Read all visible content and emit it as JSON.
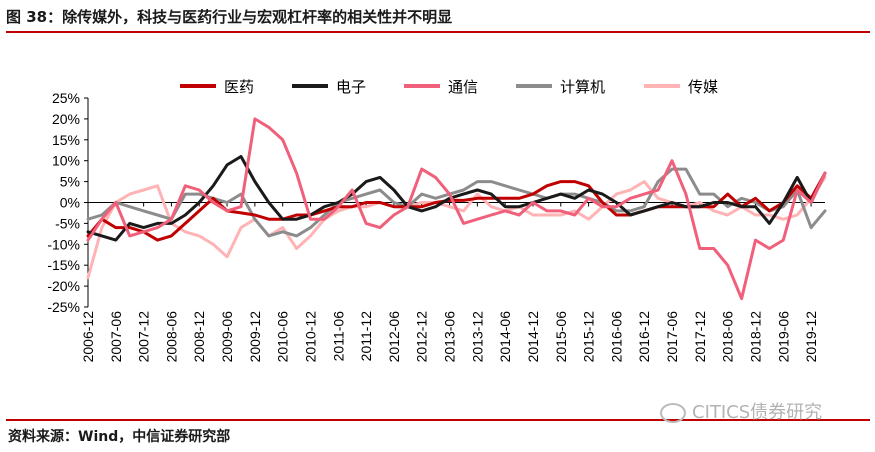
{
  "header": {
    "title": "图 38：除传媒外，科技与医药行业与宏观杠杆率的相关性并不明显"
  },
  "footer": {
    "source": "资料来源：Wind，中信证券研究部"
  },
  "watermark": {
    "text": "CITICS债券研究",
    "icon": "wechat-icon"
  },
  "chart_data": {
    "type": "line",
    "x": [
      "2006-12",
      "2007-03",
      "2007-06",
      "2007-09",
      "2007-12",
      "2008-03",
      "2008-06",
      "2008-09",
      "2008-12",
      "2009-03",
      "2009-06",
      "2009-09",
      "2009-12",
      "2010-03",
      "2010-06",
      "2010-09",
      "2010-12",
      "2011-03",
      "2011-06",
      "2011-09",
      "2011-12",
      "2012-03",
      "2012-06",
      "2012-09",
      "2012-12",
      "2013-03",
      "2013-06",
      "2013-09",
      "2013-12",
      "2014-03",
      "2014-06",
      "2014-09",
      "2014-12",
      "2015-03",
      "2015-06",
      "2015-09",
      "2015-12",
      "2016-03",
      "2016-06",
      "2016-09",
      "2016-12",
      "2017-03",
      "2017-06",
      "2017-09",
      "2017-12",
      "2018-03",
      "2018-06",
      "2018-09",
      "2018-12",
      "2019-03",
      "2019-06",
      "2019-09",
      "2019-12",
      "2020-03"
    ],
    "xtick_labels": [
      "2006-12",
      "2007-06",
      "2007-12",
      "2008-06",
      "2008-12",
      "2009-06",
      "2009-12",
      "2010-06",
      "2010-12",
      "2011-06",
      "2011-12",
      "2012-06",
      "2012-12",
      "2013-06",
      "2013-12",
      "2014-06",
      "2014-12",
      "2015-06",
      "2015-12",
      "2016-06",
      "2016-12",
      "2017-06",
      "2017-12",
      "2018-06",
      "2018-12",
      "2019-06",
      "2019-12"
    ],
    "yticks": [
      "25%",
      "20%",
      "15%",
      "10%",
      "5%",
      "0%",
      "-5%",
      "-10%",
      "-15%",
      "-20%",
      "-25%"
    ],
    "ylim": [
      -25,
      25
    ],
    "legend_position": "top",
    "series": [
      {
        "name": "医药",
        "color": "#c00000",
        "values": [
          -8,
          -4,
          -6,
          -6,
          -7,
          -9,
          -8,
          -5,
          -2,
          1,
          -2,
          -2.5,
          -3,
          -4,
          -4,
          -3,
          -3,
          -2,
          -1,
          -1,
          0,
          0,
          -1,
          -1,
          -1,
          0,
          0.5,
          0.5,
          1,
          1,
          1,
          1,
          2,
          4,
          5,
          5,
          4,
          0,
          -3,
          -3,
          -2,
          -1,
          -1,
          -1,
          -1,
          -1,
          2,
          -1,
          1,
          -2,
          0,
          4,
          1,
          7
        ]
      },
      {
        "name": "电子",
        "color": "#1a1a1a",
        "values": [
          -7,
          -8,
          -9,
          -5,
          -6,
          -5,
          -5,
          -3,
          0,
          4,
          9,
          11,
          5,
          0,
          -4,
          -4,
          -3,
          -1,
          0,
          2,
          5,
          6,
          3,
          -1,
          -2,
          -1,
          1,
          2,
          3,
          2,
          -1,
          -1,
          0,
          1,
          2,
          1,
          3,
          2,
          0,
          -3,
          -2,
          -1,
          0,
          -1,
          -1,
          0,
          0,
          -1,
          -1,
          -5,
          0,
          6,
          0,
          7
        ]
      },
      {
        "name": "通信",
        "color": "#f0607a",
        "values": [
          -9,
          -4,
          0,
          -8,
          -7,
          -6,
          -4,
          4,
          3,
          0,
          -2,
          -1,
          20,
          18,
          15,
          7,
          -4,
          -4,
          -1,
          3,
          -5,
          -6,
          -3,
          -1,
          8,
          6,
          2,
          -5,
          -4,
          -3,
          -2,
          -3,
          0,
          -2,
          -2,
          -3,
          1,
          -1,
          -1,
          1,
          2,
          3,
          10,
          2,
          -11,
          -11,
          -15,
          -23,
          -9,
          -11,
          -9,
          3,
          0,
          7
        ]
      },
      {
        "name": "计算机",
        "color": "#8c8c8c",
        "values": [
          -4,
          -3,
          0,
          -1,
          -2,
          -3,
          -4,
          2,
          2,
          1,
          0,
          2,
          -4,
          -8,
          -7,
          -8,
          -6,
          -3,
          0,
          1,
          2,
          3,
          0,
          -1,
          2,
          1,
          2,
          3,
          5,
          5,
          4,
          3,
          2,
          1,
          2,
          2,
          1,
          0,
          -2,
          -2,
          -1,
          5,
          8,
          8,
          2,
          2,
          -1,
          1,
          0,
          -2,
          -1,
          3,
          -6,
          -2
        ]
      },
      {
        "name": "传媒",
        "color": "#ffb3b5",
        "values": [
          -18,
          -6,
          0,
          2,
          3,
          4,
          -5,
          -7,
          -8,
          -10,
          -13,
          -6,
          -4,
          -8,
          -6,
          -11,
          -8,
          -4,
          -2,
          -1,
          -1,
          0,
          -1,
          -1,
          0,
          0,
          -1,
          -2,
          2,
          -1,
          -2,
          -1,
          -3,
          -3,
          -3,
          -2,
          -4,
          -1,
          2,
          3,
          5,
          1,
          0,
          -1,
          0,
          -2,
          -3,
          -1,
          -3,
          -3,
          -4,
          -3,
          1,
          6
        ]
      }
    ]
  }
}
